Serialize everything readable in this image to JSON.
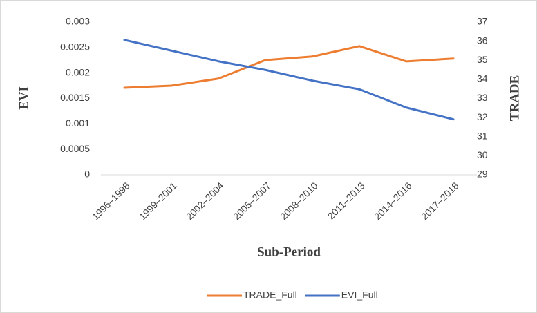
{
  "chart_data": {
    "type": "line",
    "x_label": "Sub-Period",
    "y_label": "EVI",
    "y2_label": "TRADE",
    "categories": [
      "1996–1998",
      "1999–2001",
      "2002–2004",
      "2005–2007",
      "2008–2010",
      "2011–2013",
      "2014–2016",
      "2017–2018"
    ],
    "series": [
      {
        "name": "TRADE_Full",
        "color": "#ed7d31",
        "axis": "y2",
        "values": [
          33.56,
          33.67,
          34.04,
          35.01,
          35.2,
          35.74,
          34.94,
          35.09
        ]
      },
      {
        "name": "EVI_Full",
        "color": "#4472c4",
        "values": [
          0.00265,
          0.00244,
          0.00223,
          0.00206,
          0.00185,
          0.00168,
          0.00132,
          0.00109
        ]
      }
    ],
    "ylim": [
      0,
      0.003
    ],
    "yticks": [
      0,
      0.0005,
      0.001,
      0.0015,
      0.002,
      0.0025,
      0.003
    ],
    "y2lim": [
      29,
      37
    ],
    "y2ticks": [
      29,
      30,
      31,
      32,
      33,
      34,
      35,
      36,
      37
    ],
    "grid": false,
    "legend": "bottom"
  }
}
